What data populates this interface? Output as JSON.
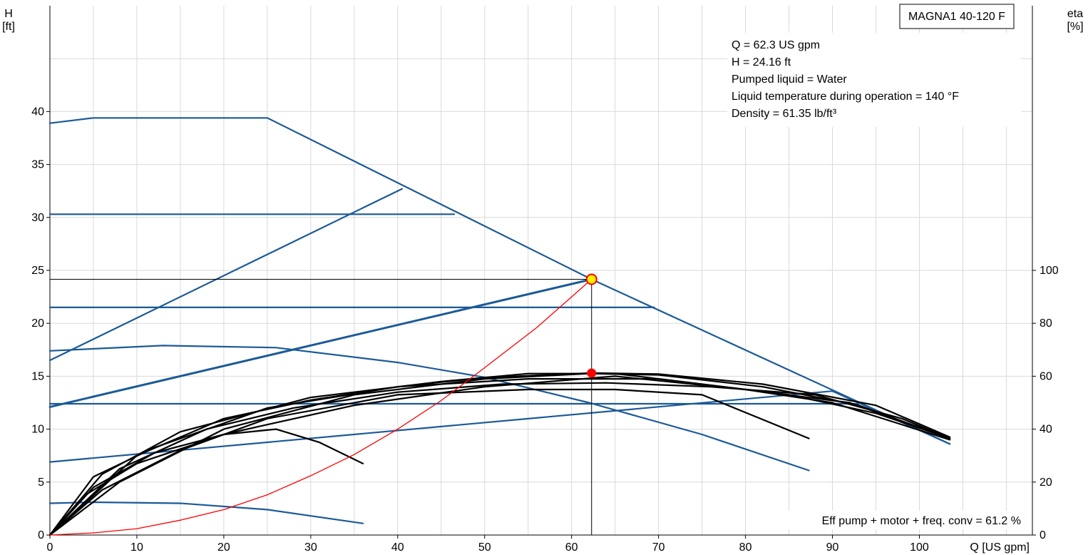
{
  "chart_data": {
    "type": "line",
    "title": "MAGNA1 40-120 F",
    "xlabel": "Q [US gpm]",
    "ylabel_left": [
      "H",
      "[ft]"
    ],
    "ylabel_right": [
      "eta",
      "[%]"
    ],
    "xlim": [
      0,
      113
    ],
    "ylim_left": [
      0,
      50
    ],
    "ylim_right": [
      0,
      200
    ],
    "x_ticks": [
      0,
      10,
      20,
      30,
      40,
      50,
      60,
      70,
      80,
      90,
      100
    ],
    "y_left_ticks": [
      0,
      5,
      10,
      15,
      20,
      25,
      30,
      35,
      40
    ],
    "y_right_ticks": [
      0,
      20,
      40,
      60,
      80,
      100
    ],
    "grid": true,
    "info_lines": [
      "Q = 62.3 US gpm",
      "H = 24.16 ft",
      "Pumped liquid = Water",
      "Liquid temperature during operation = 140 °F",
      "Density = 61.35 lb/ft³"
    ],
    "efficiency_label": "Eff pump + motor + freq. conv = 61.2 %",
    "colors": {
      "head": "#1b5a96",
      "eta": "#000000",
      "system": "#ff0000",
      "point_fill": "#ffee00",
      "grid": "#d9d9d9"
    },
    "duty_point": {
      "q": 62.3,
      "h": 24.16,
      "eta": 61.2
    },
    "head_curves": [
      {
        "points": [
          [
            0,
            38.9
          ],
          [
            5,
            39.4
          ],
          [
            25,
            39.4
          ],
          [
            62.3,
            24.16
          ],
          [
            103.5,
            8.6
          ]
        ]
      },
      {
        "points": [
          [
            0,
            30.3
          ],
          [
            46.5,
            30.3
          ]
        ]
      },
      {
        "points": [
          [
            0,
            21.5
          ],
          [
            69.5,
            21.5
          ]
        ]
      },
      {
        "points": [
          [
            0,
            12.4
          ],
          [
            93,
            12.4
          ]
        ]
      },
      {
        "points": [
          [
            0,
            16.5
          ],
          [
            40.5,
            32.7
          ]
        ]
      },
      {
        "points": [
          [
            0,
            12.1
          ],
          [
            62.3,
            24.16
          ]
        ],
        "thick": true
      },
      {
        "points": [
          [
            0,
            6.9
          ],
          [
            90,
            13.6
          ],
          [
            103.5,
            8.6
          ]
        ]
      },
      {
        "points": [
          [
            0,
            17.4
          ],
          [
            13,
            17.9
          ],
          [
            26,
            17.7
          ],
          [
            40,
            16.3
          ],
          [
            50,
            14.9
          ],
          [
            62,
            12.5
          ],
          [
            75,
            9.5
          ],
          [
            87.3,
            6.1
          ]
        ]
      },
      {
        "points": [
          [
            0,
            3.0
          ],
          [
            5,
            3.1
          ],
          [
            15,
            3.0
          ],
          [
            25,
            2.4
          ],
          [
            36,
            1.1
          ]
        ]
      }
    ],
    "eta_curves": [
      {
        "points": [
          [
            0,
            0
          ],
          [
            5,
            18
          ],
          [
            12,
            31
          ],
          [
            20,
            38
          ],
          [
            26,
            40
          ],
          [
            31,
            35
          ],
          [
            36,
            27
          ]
        ]
      },
      {
        "points": [
          [
            0,
            0
          ],
          [
            6,
            17
          ],
          [
            15,
            32
          ],
          [
            25,
            44
          ],
          [
            40,
            53
          ],
          [
            55,
            55
          ],
          [
            65,
            55
          ],
          [
            75,
            53
          ],
          [
            87.3,
            36.5
          ]
        ]
      },
      {
        "points": [
          [
            0,
            0
          ],
          [
            8,
            20
          ],
          [
            20,
            40
          ],
          [
            35,
            53
          ],
          [
            50,
            59
          ],
          [
            62,
            61
          ],
          [
            70,
            60.5
          ],
          [
            82,
            56
          ],
          [
            93,
            49
          ],
          [
            103.5,
            36.5
          ]
        ]
      },
      {
        "points": [
          [
            0,
            0
          ],
          [
            6,
            23
          ],
          [
            15,
            39
          ],
          [
            30,
            52
          ],
          [
            45,
            58
          ],
          [
            55,
            61
          ],
          [
            65,
            61
          ],
          [
            80,
            55
          ],
          [
            90,
            50
          ],
          [
            103.5,
            36
          ]
        ]
      },
      {
        "points": [
          [
            0,
            0
          ],
          [
            5,
            22
          ],
          [
            12,
            33
          ],
          [
            25,
            48
          ],
          [
            40,
            56
          ],
          [
            55,
            59
          ],
          [
            70,
            59
          ],
          [
            85,
            53
          ],
          [
            95,
            46
          ],
          [
            103.5,
            36.5
          ]
        ]
      },
      {
        "points": [
          [
            0,
            0
          ],
          [
            4,
            15
          ],
          [
            10,
            27
          ],
          [
            20,
            38
          ],
          [
            24,
            41
          ],
          [
            35,
            49
          ],
          [
            50,
            56
          ],
          [
            65,
            60
          ],
          [
            80,
            55
          ],
          [
            92,
            50
          ],
          [
            103.5,
            36.5
          ]
        ]
      },
      {
        "points": [
          [
            0,
            0
          ],
          [
            10,
            30
          ],
          [
            20,
            44
          ],
          [
            30,
            51
          ],
          [
            40,
            56
          ],
          [
            50,
            59.5
          ],
          [
            62.3,
            61.2
          ],
          [
            70,
            60.8
          ],
          [
            82,
            57
          ],
          [
            95,
            49
          ],
          [
            103.5,
            37
          ]
        ]
      },
      {
        "points": [
          [
            0,
            0
          ],
          [
            8,
            25
          ],
          [
            18,
            40
          ],
          [
            28,
            48
          ],
          [
            40,
            54
          ],
          [
            52,
            57
          ],
          [
            64,
            57.5
          ],
          [
            76,
            56
          ],
          [
            88,
            53
          ],
          [
            98,
            44
          ],
          [
            103.5,
            36.5
          ]
        ]
      }
    ],
    "system_curve": {
      "points": [
        [
          0,
          0
        ],
        [
          5,
          0.2
        ],
        [
          10,
          0.6
        ],
        [
          15,
          1.4
        ],
        [
          20,
          2.4
        ],
        [
          25,
          3.8
        ],
        [
          30,
          5.6
        ],
        [
          35,
          7.6
        ],
        [
          40,
          10.0
        ],
        [
          45,
          12.7
        ],
        [
          50,
          15.8
        ],
        [
          56,
          19.6
        ],
        [
          62.3,
          24.16
        ]
      ]
    }
  }
}
